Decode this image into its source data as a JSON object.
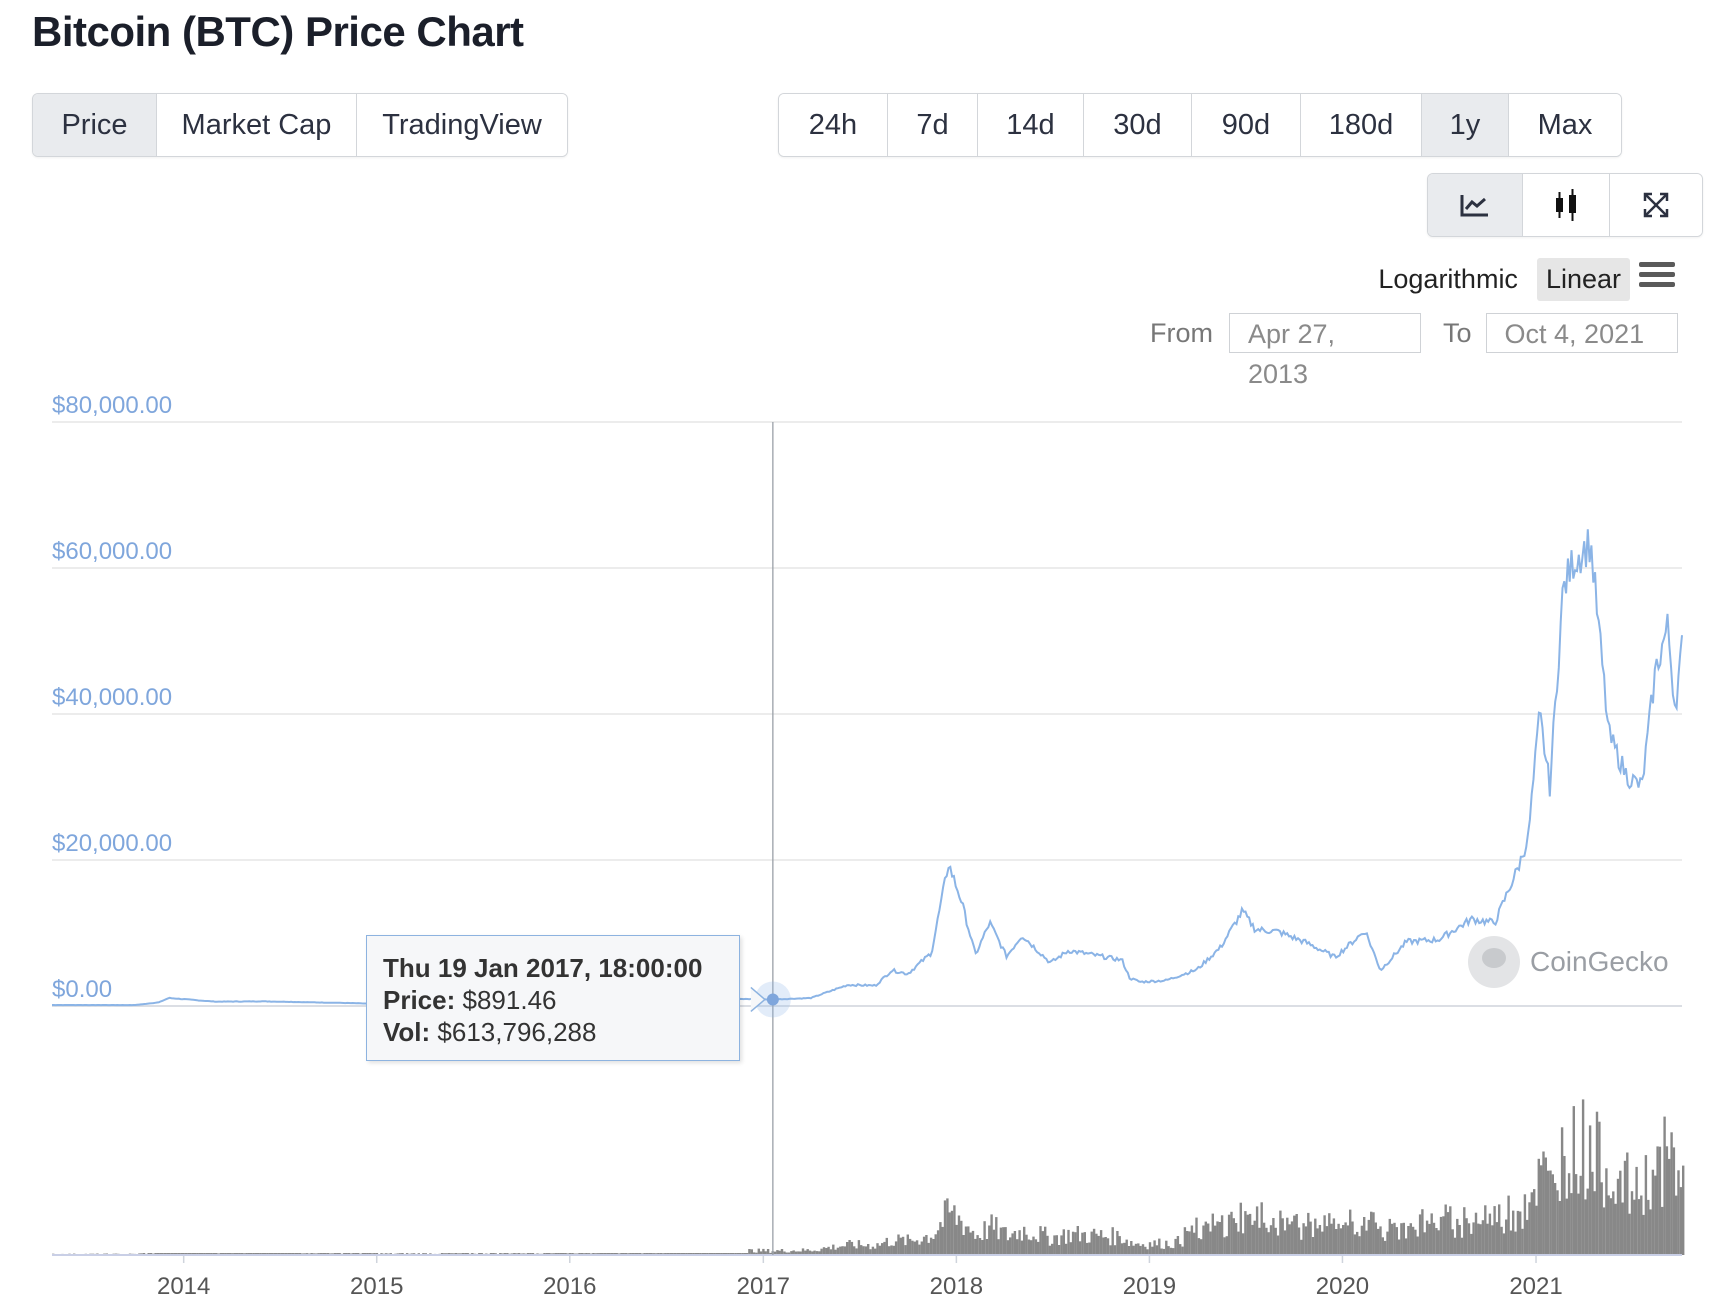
{
  "header": {
    "title": "Bitcoin (BTC) Price Chart"
  },
  "tabs": [
    {
      "label": "Price",
      "active": true
    },
    {
      "label": "Market Cap",
      "active": false
    },
    {
      "label": "TradingView",
      "active": false
    }
  ],
  "ranges": [
    {
      "label": "24h",
      "active": false
    },
    {
      "label": "7d",
      "active": false
    },
    {
      "label": "14d",
      "active": false
    },
    {
      "label": "30d",
      "active": false
    },
    {
      "label": "90d",
      "active": false
    },
    {
      "label": "180d",
      "active": false
    },
    {
      "label": "1y",
      "active": true
    },
    {
      "label": "Max",
      "active": false
    }
  ],
  "tools": [
    "line-chart-icon",
    "candlestick-icon",
    "fullscreen-icon"
  ],
  "scale": {
    "logarithmic_label": "Logarithmic",
    "linear_label": "Linear",
    "active": "Linear"
  },
  "date_range": {
    "from_label": "From",
    "from_value": "Apr 27, 2013",
    "to_label": "To",
    "to_value": "Oct 4, 2021"
  },
  "tooltip": {
    "date": "Thu 19 Jan 2017, 18:00:00",
    "price_label": "Price:",
    "price_value": "$891.46",
    "vol_label": "Vol:",
    "vol_value": "$613,796,288"
  },
  "watermark": "CoinGecko",
  "colors": {
    "line": "#8bb4e6",
    "axis_label": "#7fa6dc",
    "grid": "#e6e6e6",
    "volume": "#888888",
    "active_bg": "#e9ebee"
  },
  "chart_data": {
    "type": "line",
    "title": "",
    "ylabel": "",
    "xlabel": "",
    "ylim": [
      0,
      80000
    ],
    "y_ticks": [
      "$0.00",
      "$20,000.00",
      "$40,000.00",
      "$60,000.00",
      "$80,000.00"
    ],
    "x_ticks": [
      "2014",
      "2015",
      "2016",
      "2017",
      "2018",
      "2019",
      "2020",
      "2021"
    ],
    "x_range": [
      "2013-04-27",
      "2021-10-04"
    ],
    "series": [
      {
        "x": [
          "2013-04-27",
          "2013-10-01",
          "2013-11-15",
          "2013-12-04",
          "2014-03-01",
          "2014-06-01",
          "2014-12-01",
          "2015-01-15",
          "2015-06-01",
          "2015-12-01",
          "2016-06-01",
          "2016-12-01",
          "2017-01-19",
          "2017-04-01",
          "2017-06-10",
          "2017-08-01",
          "2017-09-01",
          "2017-10-01",
          "2017-11-15",
          "2017-12-17",
          "2018-01-10",
          "2018-02-06",
          "2018-03-05",
          "2018-04-06",
          "2018-05-05",
          "2018-06-28",
          "2018-08-01",
          "2018-11-10",
          "2018-11-25",
          "2018-12-15",
          "2019-02-01",
          "2019-04-01",
          "2019-05-15",
          "2019-06-26",
          "2019-07-20",
          "2019-09-01",
          "2019-10-24",
          "2019-12-18",
          "2020-02-13",
          "2020-03-13",
          "2020-05-01",
          "2020-07-01",
          "2020-09-01",
          "2020-10-15",
          "2020-11-30",
          "2020-12-17",
          "2021-01-08",
          "2021-01-27",
          "2021-02-21",
          "2021-03-13",
          "2021-04-14",
          "2021-05-19",
          "2021-06-22",
          "2021-07-20",
          "2021-08-15",
          "2021-09-07",
          "2021-09-21",
          "2021-10-04"
        ],
        "values": [
          135,
          130,
          500,
          1100,
          600,
          640,
          370,
          200,
          250,
          430,
          670,
          960,
          891,
          1100,
          2900,
          2800,
          4900,
          4400,
          7300,
          19500,
          14500,
          7000,
          11400,
          6800,
          9700,
          5900,
          7600,
          6300,
          3800,
          3300,
          3500,
          5000,
          8000,
          13000,
          10500,
          10200,
          8700,
          6700,
          10300,
          4900,
          8800,
          9100,
          11900,
          11400,
          19300,
          23000,
          40000,
          30000,
          57000,
          61000,
          63500,
          37000,
          31500,
          30000,
          46000,
          52000,
          41000,
          49000
        ]
      }
    ],
    "volume_note": "volume histogram shown below the price line"
  }
}
